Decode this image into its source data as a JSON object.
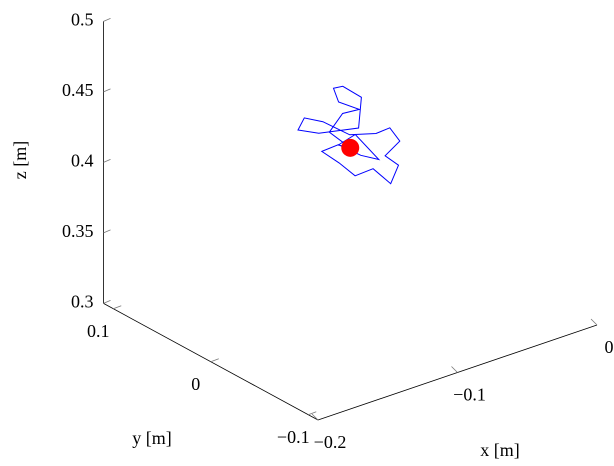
{
  "chart_data": {
    "type": "line3d",
    "xlabel": "x [m]",
    "ylabel": "y [m]",
    "zlabel": "z [m]",
    "xlim": [
      -0.2,
      0
    ],
    "ylim": [
      -0.11,
      0.11
    ],
    "zlim": [
      0.3,
      0.5
    ],
    "xticks": [
      {
        "value": -0.2,
        "label": "−0.2"
      },
      {
        "value": -0.1,
        "label": "−0.1"
      },
      0
    ],
    "yticks": [
      {
        "value": -0.1,
        "label": "−0.1"
      },
      0,
      0.1
    ],
    "zticks": [
      0.3,
      0.35,
      0.4,
      0.45,
      0.5
    ],
    "series": [
      {
        "color": "#0000ff",
        "x": [
          -0.1,
          -0.108,
          -0.095,
          -0.09,
          -0.1,
          -0.098,
          -0.09,
          -0.085,
          -0.094,
          -0.11,
          -0.12,
          -0.112,
          -0.1,
          -0.092,
          -0.085,
          -0.08,
          -0.075,
          -0.082,
          -0.078,
          -0.085,
          -0.092,
          -0.1,
          -0.108,
          -0.112,
          -0.105,
          -0.098,
          -0.09,
          -0.095,
          -0.103,
          -0.1
        ],
        "y": [
          0,
          0.01,
          0.015,
          0.005,
          0.012,
          0.02,
          0.022,
          0.01,
          0,
          0.018,
          0.025,
          0.03,
          0.028,
          0.012,
          -0.005,
          -0.012,
          -0.015,
          -0.01,
          -0.018,
          -0.02,
          -0.012,
          -0.005,
          0,
          0.012,
          0.005,
          -0.008,
          -0.015,
          0.002,
          0.008,
          0
        ],
        "z": [
          0.418,
          0.428,
          0.435,
          0.44,
          0.446,
          0.452,
          0.45,
          0.445,
          0.43,
          0.425,
          0.428,
          0.432,
          0.426,
          0.42,
          0.425,
          0.43,
          0.42,
          0.41,
          0.405,
          0.395,
          0.405,
          0.4,
          0.41,
          0.415,
          0.42,
          0.415,
          0.412,
          0.425,
          0.418,
          0.418
        ]
      }
    ],
    "marker": {
      "color": "#ff0000",
      "x": -0.1,
      "y": 0,
      "z": 0.418
    }
  }
}
